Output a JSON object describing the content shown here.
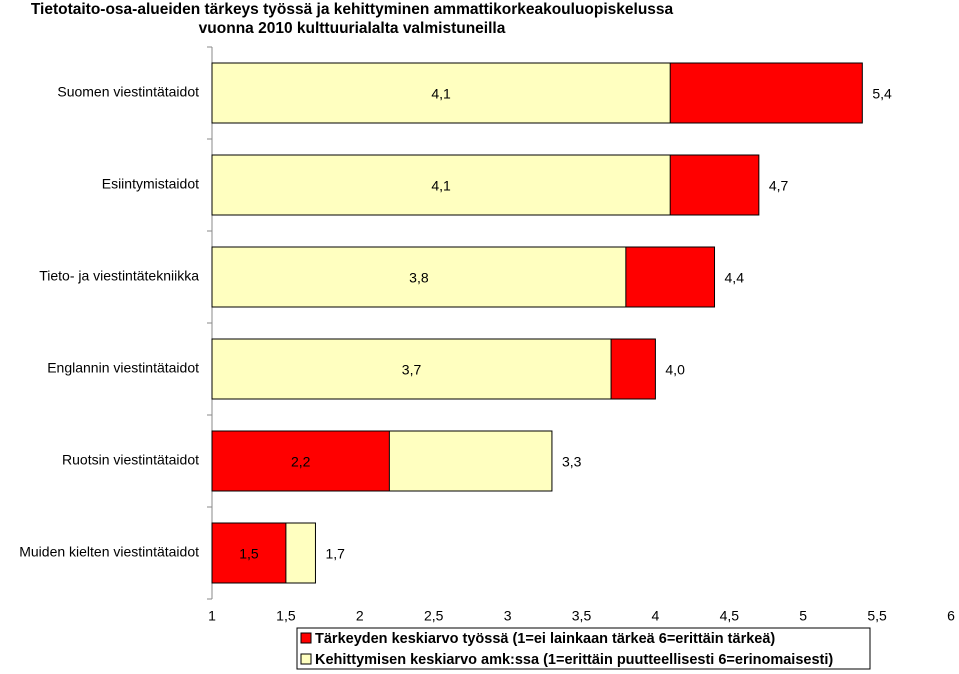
{
  "chart_data": {
    "type": "bar",
    "orientation": "horizontal",
    "title": [
      "Tietotaito-osa-alueiden tärkeys työssä ja kehittyminen ammattikorkeakouluopiskelussa",
      "vuonna 2010 kulttuurialalta valmistuneilla"
    ],
    "categories": [
      "Suomen viestintätaidot",
      "Esiintymistaidot",
      "Tieto- ja viestintätekniikka",
      "Englannin viestintätaidot",
      "Ruotsin viestintätaidot",
      "Muiden kielten viestintätaidot"
    ],
    "series": [
      {
        "name": "Tärkeyden keskiarvo työssä (1=ei lainkaan tärkeä 6=erittäin tärkeä)",
        "color": "#ff0000",
        "values": [
          5.4,
          4.7,
          4.4,
          4.0,
          2.2,
          1.5
        ],
        "value_labels": [
          "5,4",
          "4,7",
          "4,4",
          "4,0",
          "2,2",
          "1,5"
        ]
      },
      {
        "name": "Kehittymisen keskiarvo amk:ssa (1=erittäin puutteellisesti 6=erinomaisesti)",
        "color": "#ffffc0",
        "values": [
          4.1,
          4.1,
          3.8,
          3.7,
          3.3,
          1.7
        ],
        "value_labels": [
          "4,1",
          "4,1",
          "3,8",
          "3,7",
          "3,3",
          "1,7"
        ]
      }
    ],
    "xlim": [
      1,
      6
    ],
    "xticks": [
      1,
      {
        "value": 1.5,
        "label": "1,5"
      },
      2,
      {
        "value": 2.5,
        "label": "2,5"
      },
      3,
      {
        "value": 3.5,
        "label": "3,5"
      },
      4,
      {
        "value": 4.5,
        "label": "4,5"
      },
      5,
      {
        "value": 5.5,
        "label": "5,5"
      },
      6
    ],
    "legend": "bottom"
  }
}
